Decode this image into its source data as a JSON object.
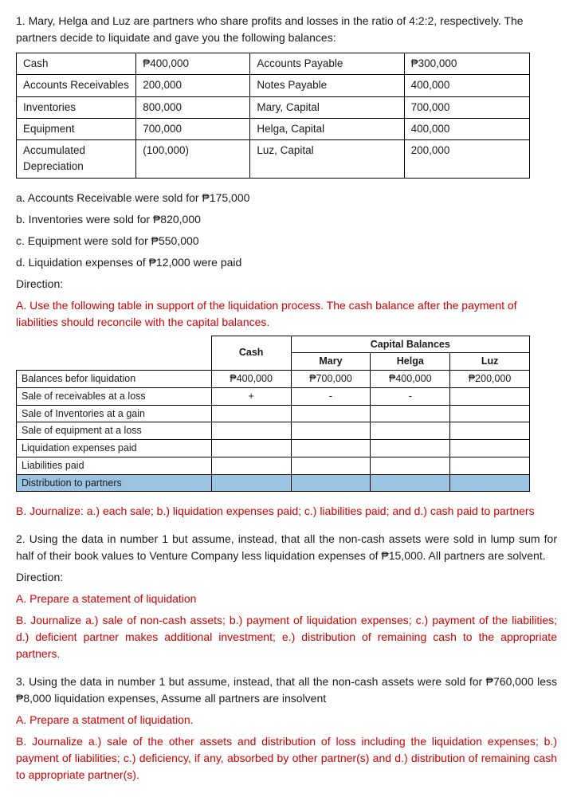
{
  "intro": "1. Mary, Helga and Luz are partners who share profits and losses in the ratio of 4:2:2, respectively. The partners decide to liquidate and gave you the following balances:",
  "balanceTable": {
    "rows": [
      {
        "a": "Cash",
        "b": "₱400,000",
        "c": "Accounts Payable",
        "d": "₱300,000"
      },
      {
        "a": "Accounts Receivables",
        "b": "200,000",
        "c": "Notes Payable",
        "d": "400,000"
      },
      {
        "a": "Inventories",
        "b": "800,000",
        "c": "Mary, Capital",
        "d": "700,000"
      },
      {
        "a": "Equipment",
        "b": "700,000",
        "c": "Helga, Capital",
        "d": "400,000"
      },
      {
        "a": "Accumulated Depreciation",
        "b": "(100,000)",
        "c": "Luz, Capital",
        "d": "200,000"
      }
    ]
  },
  "items": {
    "a": "a. Accounts Receivable were sold for ₱175,000",
    "b": "b. Inventories were sold for ₱820,000",
    "c": "c. Equipment were sold for ₱550,000",
    "d": "d. Liquidation expenses of ₱12,000 were paid"
  },
  "direction": "Direction:",
  "dirA": "A. Use the following table in support of the liquidation process. The cash balance after the payment of liabilities should reconcile with the capital balances.",
  "liqTable": {
    "headerGroup": "Capital Balances",
    "cols": [
      "Cash",
      "Mary",
      "Helga",
      "Luz"
    ],
    "rows": [
      {
        "label": "Balances befor liquidation",
        "vals": [
          "₱400,000",
          "₱700,000",
          "₱400,000",
          "₱200,000"
        ],
        "hl": false
      },
      {
        "label": "Sale of receivables at a loss",
        "vals": [
          "+",
          "-",
          "-",
          ""
        ],
        "hl": false
      },
      {
        "label": "Sale of Inventories at a gain",
        "vals": [
          "",
          "",
          "",
          ""
        ],
        "hl": false
      },
      {
        "label": "Sale of equipment at a loss",
        "vals": [
          "",
          "",
          "",
          ""
        ],
        "hl": false
      },
      {
        "label": "Liquidation expenses paid",
        "vals": [
          "",
          "",
          "",
          ""
        ],
        "hl": false
      },
      {
        "label": "Liabilities paid",
        "vals": [
          "",
          "",
          "",
          ""
        ],
        "hl": false
      },
      {
        "label": "Distribution to partners",
        "vals": [
          "",
          "",
          "",
          ""
        ],
        "hl": true
      }
    ]
  },
  "dirB": "B. Journalize: a.) each sale; b.) liquidation expenses paid; c.) liabilities paid; and d.) cash paid to partners",
  "q2": {
    "intro": "2. Using the data in number 1 but assume, instead, that all the non-cash assets were sold in lump sum for half of their book values to Venture Company less liquidation expenses of ₱15,000. All partners are solvent.",
    "direction": "Direction:",
    "a": "A. Prepare a statement of liquidation",
    "b": "B. Journalize a.) sale of non-cash assets; b.) payment of liquidation expenses; c.) payment of the liabilities; d.) deficient partner makes additional investment; e.) distribution of remaining cash to the appropriate partners."
  },
  "q3": {
    "intro": "3. Using the data in number 1 but assume, instead, that all the non-cash assets were sold for ₱760,000 less ₱8,000 liquidation expenses, Assume all partners are insolvent",
    "a": "A. Prepare a statment of liquidation.",
    "b": "B. Journalize a.) sale of the other assets and distribution of loss including the liquidation expenses; b.) payment of liabilities; c.) deficiency, if any, absorbed by other partner(s) and d.) distribution of remaining cash to appropriate partner(s)."
  }
}
